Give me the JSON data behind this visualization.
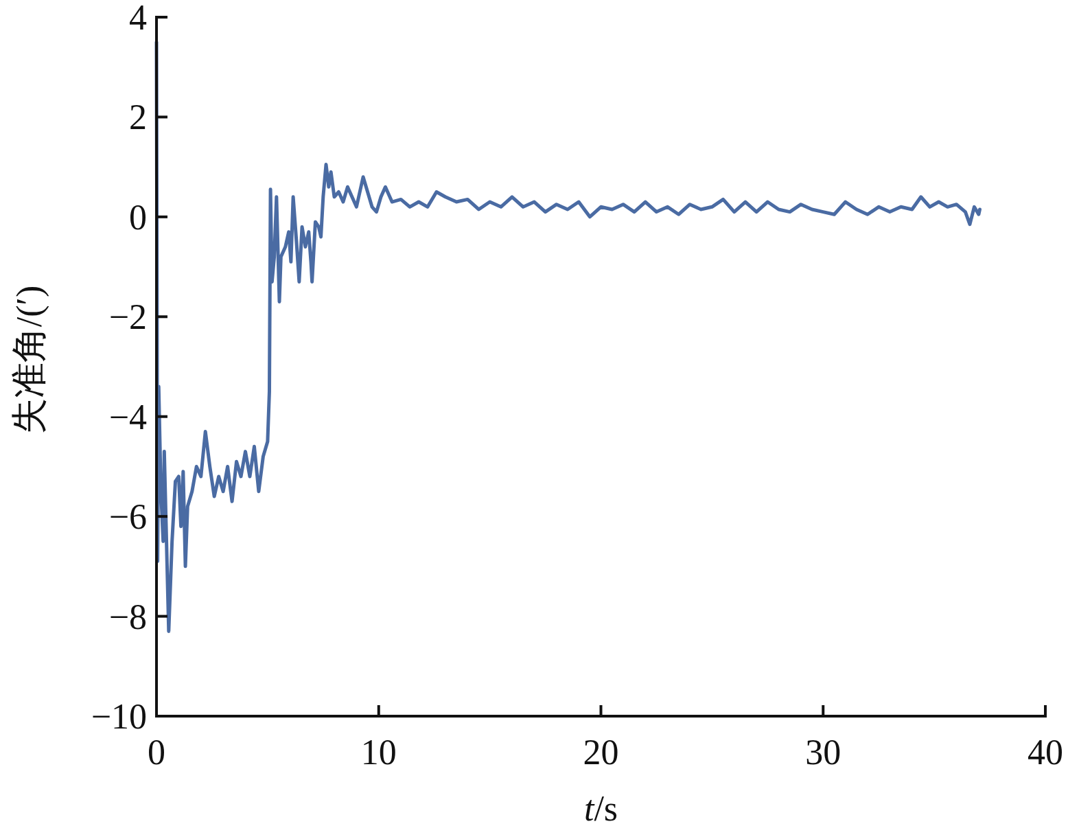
{
  "chart_data": {
    "type": "line",
    "xlabel": "t/s",
    "ylabel": "失准角/(′)",
    "xlim": [
      0,
      40
    ],
    "ylim": [
      -10,
      4
    ],
    "xticks": [
      0,
      10,
      20,
      30,
      40
    ],
    "yticks": [
      {
        "value": -10,
        "label": "−10"
      },
      {
        "value": -8,
        "label": "−8"
      },
      {
        "value": -6,
        "label": "−6"
      },
      {
        "value": -4,
        "label": "−4"
      },
      {
        "value": -2,
        "label": "−2"
      },
      0,
      2,
      4
    ],
    "grid": false,
    "marker": "none",
    "line_style": "solid",
    "series": [
      {
        "color": "#4a6ba3",
        "x": [
          0,
          0.05,
          0.1,
          0.2,
          0.3,
          0.35,
          0.45,
          0.55,
          0.7,
          0.85,
          1.0,
          1.1,
          1.2,
          1.3,
          1.4,
          1.6,
          1.8,
          2.0,
          2.2,
          2.4,
          2.6,
          2.8,
          3.0,
          3.2,
          3.4,
          3.6,
          3.8,
          4.0,
          4.2,
          4.4,
          4.6,
          4.8,
          5.0,
          5.08,
          5.13,
          5.2,
          5.3,
          5.4,
          5.53,
          5.6,
          5.8,
          5.95,
          6.05,
          6.15,
          6.3,
          6.42,
          6.55,
          6.7,
          6.85,
          6.95,
          7.0,
          7.15,
          7.3,
          7.4,
          7.5,
          7.63,
          7.75,
          7.85,
          8.0,
          8.2,
          8.4,
          8.6,
          8.8,
          9.0,
          9.3,
          9.5,
          9.7,
          9.9,
          10.1,
          10.3,
          10.6,
          11,
          11.4,
          11.8,
          12.2,
          12.6,
          13,
          13.5,
          14,
          14.5,
          15,
          15.5,
          16,
          16.5,
          17,
          17.5,
          18,
          18.5,
          19,
          19.5,
          20,
          20.5,
          21,
          21.5,
          22,
          22.5,
          23,
          23.5,
          24,
          24.5,
          25,
          25.5,
          26,
          26.5,
          27,
          27.5,
          28,
          28.5,
          29,
          29.5,
          30,
          30.5,
          31,
          31.5,
          32,
          32.5,
          33,
          33.5,
          34,
          34.4,
          34.8,
          35.2,
          35.6,
          36,
          36.4,
          36.6,
          36.8,
          37.0,
          37.05
        ],
        "values": [
          3.5,
          -6.9,
          -3.4,
          -5.5,
          -6.5,
          -4.7,
          -6.5,
          -8.3,
          -6.5,
          -5.3,
          -5.2,
          -6.2,
          -5.1,
          -7.0,
          -5.8,
          -5.5,
          -5.0,
          -5.2,
          -4.3,
          -5.0,
          -5.6,
          -5.2,
          -5.5,
          -5.0,
          -5.7,
          -4.9,
          -5.2,
          -4.7,
          -5.2,
          -4.6,
          -5.5,
          -4.8,
          -4.5,
          -3.5,
          0.55,
          -1.3,
          -0.8,
          0.4,
          -1.7,
          -0.8,
          -0.6,
          -0.3,
          -0.9,
          0.4,
          -0.5,
          -1.3,
          -0.2,
          -0.6,
          -0.3,
          -0.9,
          -1.3,
          -0.1,
          -0.2,
          -0.4,
          0.4,
          1.05,
          0.6,
          0.9,
          0.4,
          0.5,
          0.3,
          0.6,
          0.4,
          0.2,
          0.8,
          0.5,
          0.2,
          0.1,
          0.4,
          0.6,
          0.3,
          0.35,
          0.2,
          0.3,
          0.2,
          0.5,
          0.4,
          0.3,
          0.35,
          0.15,
          0.3,
          0.2,
          0.4,
          0.2,
          0.3,
          0.1,
          0.25,
          0.15,
          0.3,
          0.0,
          0.2,
          0.15,
          0.25,
          0.1,
          0.3,
          0.1,
          0.2,
          0.05,
          0.25,
          0.15,
          0.2,
          0.35,
          0.1,
          0.3,
          0.1,
          0.3,
          0.15,
          0.1,
          0.25,
          0.15,
          0.1,
          0.05,
          0.3,
          0.15,
          0.05,
          0.2,
          0.1,
          0.2,
          0.15,
          0.4,
          0.2,
          0.3,
          0.2,
          0.25,
          0.1,
          -0.15,
          0.2,
          0.05,
          0.15
        ]
      }
    ]
  }
}
